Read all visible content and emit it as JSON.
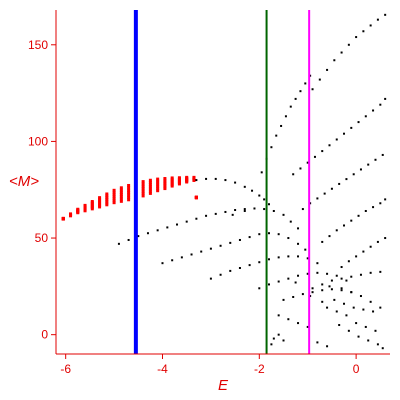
{
  "chart_data": {
    "type": "scatter",
    "xlabel": "E",
    "ylabel": "<M>",
    "xlim": [
      -6.2,
      0.7
    ],
    "ylim": [
      -10,
      168
    ],
    "x_ticks": [
      -6,
      -4,
      -2,
      0
    ],
    "y_ticks": [
      0,
      50,
      100,
      150
    ],
    "x_tick_labels": [
      "-6",
      "-4",
      "-2",
      "0"
    ],
    "y_tick_labels": [
      "0",
      "50",
      "100",
      "150"
    ],
    "grid": false,
    "colors": {
      "axes": "#e00000",
      "black_series": "#000000",
      "red_series": "#ff0000",
      "blue_line": "#0000ff",
      "green_line": "#006400",
      "magenta_line": "#ff00ff"
    },
    "vertical_lines": [
      {
        "x": -4.55,
        "color": "#0000ff"
      },
      {
        "x": -1.85,
        "color": "#006400"
      },
      {
        "x": -0.97,
        "color": "#ff00ff"
      }
    ],
    "red_band": {
      "points": [
        [
          -6.05,
          60
        ],
        [
          -5.9,
          62
        ],
        [
          -5.75,
          64
        ],
        [
          -5.6,
          65.5
        ],
        [
          -5.45,
          67
        ],
        [
          -5.3,
          68.5
        ],
        [
          -5.15,
          70
        ],
        [
          -5.0,
          71.5
        ],
        [
          -4.85,
          72.5
        ],
        [
          -4.7,
          73.5
        ],
        [
          -4.55,
          74.5
        ],
        [
          -4.4,
          75.5
        ],
        [
          -4.25,
          76.5
        ],
        [
          -4.1,
          77.5
        ],
        [
          -3.95,
          78.2
        ],
        [
          -3.8,
          79
        ],
        [
          -3.65,
          79.6
        ],
        [
          -3.5,
          80.2
        ],
        [
          -3.35,
          80.6
        ],
        [
          -3.3,
          71
        ]
      ],
      "thickness": [
        0.2,
        0.5,
        0.9,
        1.4,
        1.9,
        2.4,
        2.8,
        3.2,
        3.5,
        3.7,
        3.8,
        3.7,
        3.4,
        3.0,
        2.6,
        2.1,
        1.6,
        1.2,
        0.8,
        0.2
      ]
    },
    "black_series": [
      {
        "x": [
          -3.3,
          -3.1,
          -2.9,
          -2.7,
          -2.5,
          -2.3,
          -2.15,
          -2.0,
          -1.9,
          -1.8
        ],
        "y": [
          80,
          80.6,
          80.6,
          80,
          78.7,
          76.5,
          74.5,
          72,
          70,
          67.5
        ]
      },
      {
        "x": [
          -4.9,
          -4.7,
          -4.5,
          -4.3,
          -4.1,
          -3.9,
          -3.7,
          -3.5,
          -3.3,
          -3.1,
          -2.9,
          -2.7,
          -2.5,
          -2.3,
          -2.1,
          -1.9,
          -1.7,
          -1.5,
          -1.35,
          -1.2
        ],
        "y": [
          47,
          49,
          51,
          52.5,
          54,
          55.5,
          57,
          58.5,
          60,
          61.5,
          62.5,
          63.5,
          64.5,
          65,
          65.3,
          65,
          64,
          62,
          58.5,
          55
        ]
      },
      {
        "x": [
          -4.0,
          -3.8,
          -3.6,
          -3.4,
          -3.2,
          -3.0,
          -2.8,
          -2.6,
          -2.4,
          -2.2,
          -2.0,
          -1.8,
          -1.6,
          -1.4,
          -1.2,
          -1.05
        ],
        "y": [
          37,
          38.5,
          40,
          41.5,
          43,
          44.5,
          46,
          47.5,
          49,
          50.5,
          52,
          52.5,
          52,
          50,
          47,
          44
        ]
      },
      {
        "x": [
          -3.0,
          -2.8,
          -2.6,
          -2.4,
          -2.2,
          -2.0,
          -1.8,
          -1.6,
          -1.4,
          -1.2,
          -1.0,
          -0.8
        ],
        "y": [
          29,
          31,
          33,
          34.5,
          36,
          37.5,
          39,
          40,
          40.5,
          40.5,
          39.5,
          37
        ]
      },
      {
        "x": [
          -2.0,
          -1.8,
          -1.6,
          -1.4,
          -1.2,
          -1.0,
          -0.8,
          -0.6,
          -0.4,
          -0.2
        ],
        "y": [
          24,
          26,
          27.5,
          29,
          30.5,
          31.5,
          32,
          31.5,
          30.5,
          28
        ]
      },
      {
        "x": [
          -1.5,
          -1.3,
          -1.1,
          -0.9,
          -0.7,
          -0.5,
          -0.3,
          -0.1
        ],
        "y": [
          18,
          19.5,
          21,
          22,
          23,
          23.5,
          23,
          22
        ]
      },
      {
        "x": [
          -1.95,
          -1.85,
          -1.75,
          -1.65,
          -1.55,
          -1.45,
          -1.35,
          -1.25,
          -1.15,
          -1.05,
          -0.95
        ],
        "y": [
          84,
          91,
          97,
          103,
          108,
          113,
          118,
          122,
          126,
          130,
          134
        ]
      },
      {
        "x": [
          -0.9,
          -0.75,
          -0.6,
          -0.45,
          -0.3,
          -0.15,
          0.0,
          0.15,
          0.3,
          0.45,
          0.6
        ],
        "y": [
          127,
          132,
          137,
          142,
          146,
          150,
          154,
          157,
          160,
          163,
          165.5
        ]
      },
      {
        "x": [
          -1.3,
          -1.15,
          -1.0,
          -0.85,
          -0.7,
          -0.55,
          -0.4,
          -0.25,
          -0.1,
          0.05,
          0.2,
          0.35,
          0.5,
          0.6
        ],
        "y": [
          83,
          86,
          89,
          92,
          95,
          98,
          101,
          104,
          107,
          110,
          113,
          116,
          119,
          122
        ]
      },
      {
        "x": [
          -1.1,
          -0.95,
          -0.8,
          -0.65,
          -0.5,
          -0.35,
          -0.2,
          -0.05,
          0.1,
          0.25,
          0.4,
          0.55
        ],
        "y": [
          65,
          68,
          70.5,
          73,
          75.5,
          78,
          80.5,
          83,
          85.5,
          88,
          90.5,
          93
        ]
      },
      {
        "x": [
          -0.7,
          -0.55,
          -0.4,
          -0.25,
          -0.1,
          0.05,
          0.2,
          0.35,
          0.5,
          0.6
        ],
        "y": [
          48,
          51,
          54,
          56.5,
          59,
          61.5,
          64,
          66,
          68,
          70
        ]
      },
      {
        "x": [
          -0.3,
          -0.15,
          0.0,
          0.15,
          0.3,
          0.45,
          0.6
        ],
        "y": [
          35,
          38,
          40.5,
          43,
          45.5,
          48,
          50
        ]
      },
      {
        "x": [
          -0.9,
          -0.7,
          -0.5,
          -0.3,
          -0.1,
          0.1,
          0.3,
          0.5
        ],
        "y": [
          24,
          26,
          28,
          29,
          30,
          31,
          32,
          32.5
        ]
      },
      {
        "x": [
          -1.6,
          -1.4,
          -1.2,
          -1.0,
          -0.6,
          -0.4,
          -0.2,
          0.0,
          0.2,
          0.4,
          -1.75,
          -1.7,
          -1.6,
          -1.5,
          -0.8,
          -0.6,
          -0.35,
          -0.15,
          0.05,
          0.25,
          0.45,
          0.55,
          -0.45,
          -0.25,
          -0.05,
          0.15,
          0.35,
          -1.25,
          -0.95,
          -0.7,
          0.1,
          0.3,
          0.5,
          -0.55,
          -0.3,
          -0.1,
          -2.3,
          -2.55
        ],
        "y": [
          10,
          8,
          6,
          4,
          14,
          12,
          10,
          6,
          4,
          2,
          -5,
          -2,
          0,
          -3,
          -4,
          -6,
          5,
          2,
          -1,
          -3,
          -5,
          -7,
          18,
          16,
          14,
          13,
          12,
          27,
          20,
          17,
          20,
          17,
          14,
          25,
          24,
          22,
          64,
          62
        ]
      }
    ]
  }
}
